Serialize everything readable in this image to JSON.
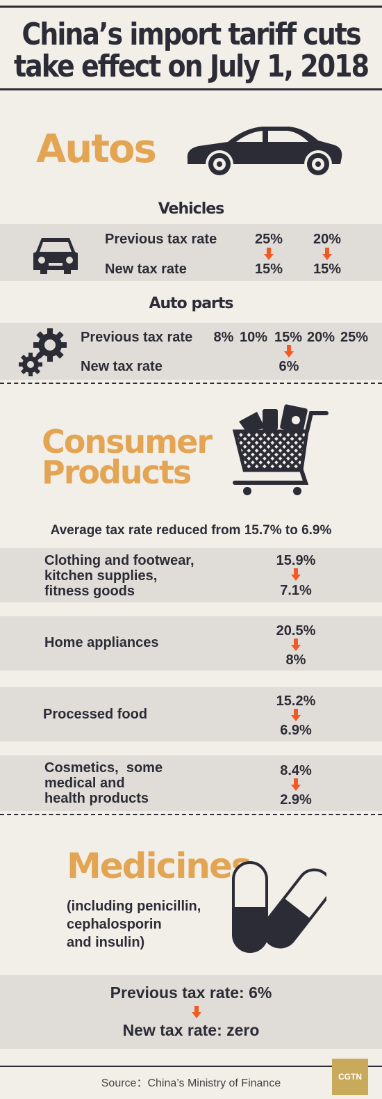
{
  "title": {
    "line1": "China’s import tariff cuts",
    "line2": "take effect on July 1, 2018"
  },
  "autos": {
    "heading": "Autos",
    "icon": "car-icon",
    "vehicles": {
      "subtitle": "Vehicles",
      "icon": "car-front-icon",
      "previous_label": "Previous tax rate",
      "new_label": "New tax rate",
      "previous_values": [
        "25%",
        "20%"
      ],
      "new_values": [
        "15%",
        "15%"
      ]
    },
    "auto_parts": {
      "subtitle": "Auto parts",
      "icon": "gears-icon",
      "previous_label": "Previous tax rate",
      "new_label": "New tax rate",
      "previous_values": [
        "8%",
        "10%",
        "15%",
        "20%",
        "25%"
      ],
      "new_value": "6%"
    }
  },
  "consumer": {
    "heading_line1": "Consumer",
    "heading_line2": "Products",
    "icon": "shopping-cart-icon",
    "average": "Average tax rate reduced from 15.7% to 6.9%",
    "items": [
      {
        "lines": [
          "Clothing and footwear,",
          "kitchen supplies,",
          "fitness goods"
        ],
        "from": "15.9%",
        "to": "7.1%"
      },
      {
        "lines": [
          "Home appliances"
        ],
        "from": "20.5%",
        "to": "8%"
      },
      {
        "lines": [
          "Processed food"
        ],
        "from": "15.2%",
        "to": "6.9%"
      },
      {
        "lines": [
          "Cosmetics,  some",
          "medical and",
          "health products"
        ],
        "from": "8.4%",
        "to": "2.9%"
      }
    ]
  },
  "medicines": {
    "heading": "Medicines",
    "icon": "capsule-icon",
    "note_lines": [
      "(including penicillin,",
      "cephalosporin",
      "and insulin)"
    ],
    "previous": "Previous tax rate: 6%",
    "new": "New tax rate: zero"
  },
  "footer": {
    "source": "Source：China’s Ministry of Finance",
    "logo": "CGTN"
  },
  "colors": {
    "accent": "#e3a553",
    "arrow": "#f15a24",
    "dark": "#2c2c36",
    "background": "#f2efe9",
    "band": "#e0ddd8"
  }
}
